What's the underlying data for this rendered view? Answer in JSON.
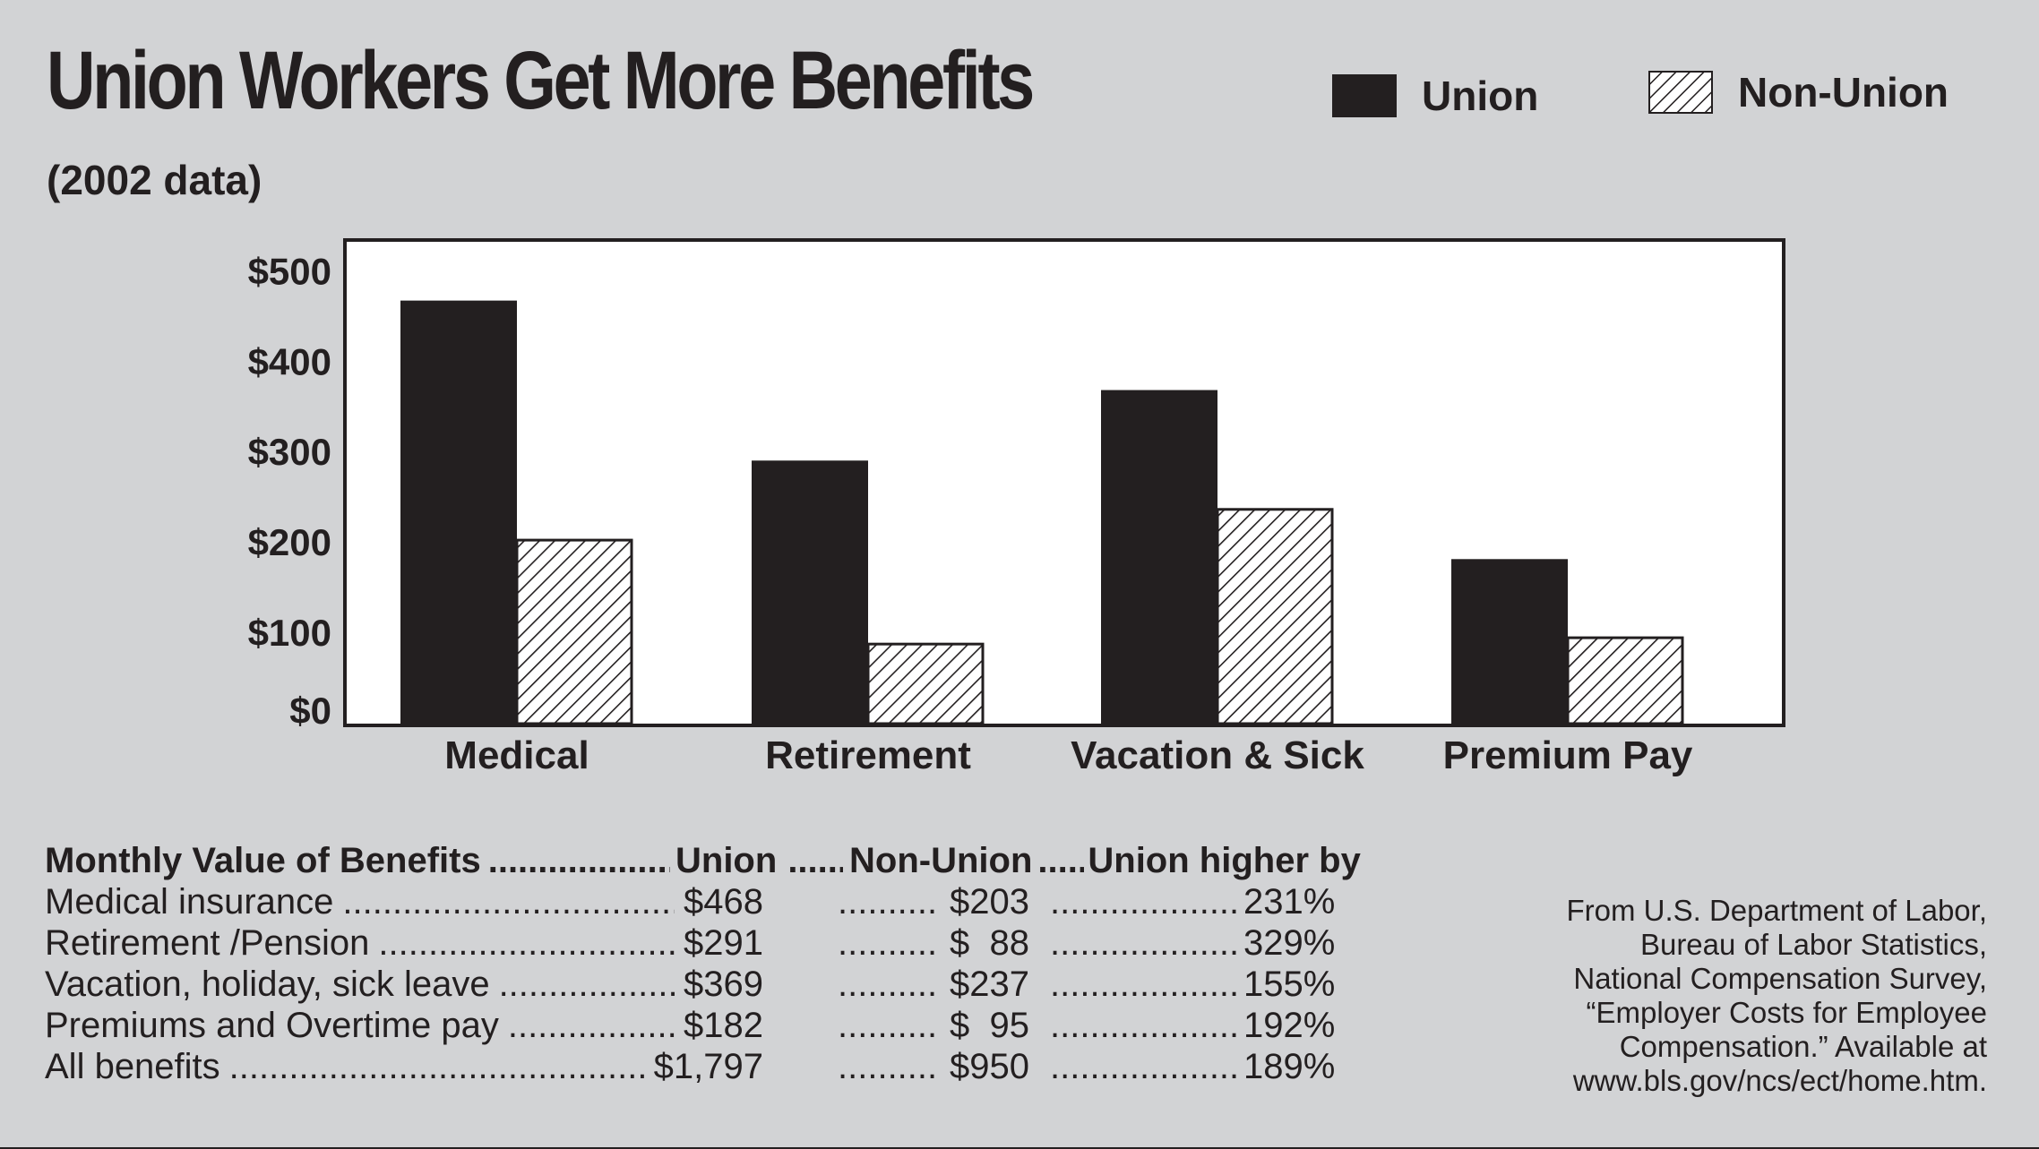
{
  "header": {
    "title": "Union Workers Get More Benefits",
    "subtitle": "(2002 data)"
  },
  "legend": {
    "union": "Union",
    "non_union": "Non-Union"
  },
  "chart_data": {
    "type": "bar",
    "categories": [
      "Medical",
      "Retirement",
      "Vacation & Sick",
      "Premium Pay"
    ],
    "series": [
      {
        "name": "Union",
        "values": [
          468,
          291,
          369,
          182
        ],
        "color": "#231f20",
        "pattern": "solid"
      },
      {
        "name": "Non-Union",
        "values": [
          203,
          88,
          237,
          95
        ],
        "color": "#231f20",
        "pattern": "diagonal-hatch"
      }
    ],
    "y_ticks": [
      "$0",
      "$100",
      "$200",
      "$300",
      "$400",
      "$500"
    ],
    "ylim": [
      0,
      535
    ],
    "grid": false,
    "legend_position": "top-right"
  },
  "table": {
    "headers": {
      "label": "Monthly Value of Benefits",
      "union": "Union",
      "non_union": "Non-Union",
      "higher": "Union higher by"
    },
    "rows": [
      {
        "label": "Medical insurance",
        "union": "$468",
        "non_union": "$203",
        "higher": "231%"
      },
      {
        "label": "Retirement /Pension",
        "union": "$291",
        "non_union": "$  88",
        "higher": "329%"
      },
      {
        "label": "Vacation, holiday, sick leave",
        "union": "$369",
        "non_union": "$237",
        "higher": "155%"
      },
      {
        "label": "Premiums and Overtime pay",
        "union": "$182",
        "non_union": "$  95",
        "higher": "192%"
      },
      {
        "label": "All benefits",
        "union": "$1,797",
        "non_union": "$950",
        "higher": "189%"
      }
    ]
  },
  "source": {
    "lines": [
      "From U.S. Department of Labor,",
      "Bureau of Labor Statistics,",
      "National Compensation Survey,",
      "“Employer Costs for Employee",
      "Compensation.” Available at",
      "www.bls.gov/ncs/ect/home.htm."
    ]
  }
}
